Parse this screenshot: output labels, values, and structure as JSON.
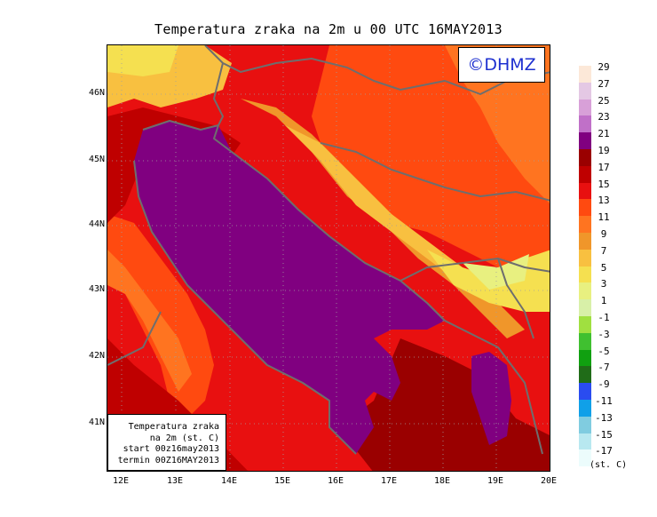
{
  "title": "Temperatura zraka na 2m u 00 UTC 16MAY2013",
  "logo_text": "©DHMZ",
  "info_box": {
    "line1": "Temperatura zraka",
    "line2": "na 2m (st. C)",
    "line3": "start 00z16may2013",
    "line4": "termin 00Z16MAY2013"
  },
  "lat_labels": [
    "46N",
    "45N",
    "44N",
    "43N",
    "42N",
    "41N"
  ],
  "lon_labels": [
    "12E",
    "13E",
    "14E",
    "15E",
    "16E",
    "17E",
    "18E",
    "19E",
    "20E"
  ],
  "colorbar": {
    "labels": [
      "29",
      "27",
      "25",
      "23",
      "21",
      "19",
      "17",
      "15",
      "13",
      "11",
      "9",
      "7",
      "5",
      "3",
      "1",
      "-1",
      "-3",
      "-5",
      "-7",
      "-9",
      "-11",
      "-13",
      "-15",
      "-17"
    ],
    "colors": [
      "#fce8d8",
      "#e4c8e4",
      "#d8a0d8",
      "#c070c8",
      "#800080",
      "#9a0000",
      "#bf0000",
      "#e81010",
      "#ff4a10",
      "#ff7420",
      "#f0962a",
      "#f8c040",
      "#f5e050",
      "#e8f080",
      "#d8f0a8",
      "#a0e040",
      "#40c030",
      "#10a010",
      "#206c18",
      "#2a4cf0",
      "#10a0e8",
      "#80cce0",
      "#b8e8f0",
      "#ecfcfc"
    ],
    "unit": "(st. C)"
  },
  "colors": {
    "sea": "#800080",
    "coast_border": "#6e6e6e",
    "logo_text": "#1e30d0"
  }
}
